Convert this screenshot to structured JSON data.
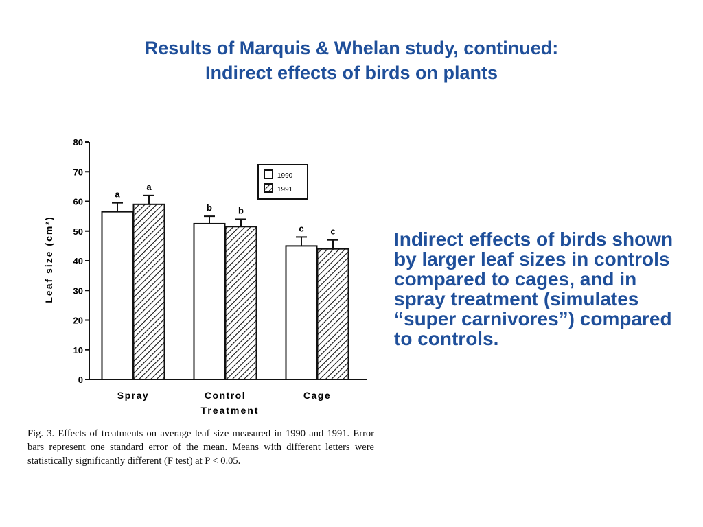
{
  "slide": {
    "title_line1": "Results of Marquis & Whelan study, continued:",
    "title_line2": "Indirect effects of birds on plants",
    "side_text": "Indirect effects of birds shown by larger leaf sizes in controls compared to cages, and in spray treatment (simulates “super carnivores”) compared to controls.",
    "caption": "Fig. 3.    Effects of treatments on average leaf size measured in 1990 and 1991. Error bars represent one standard error of the mean. Means with different letters were statistically significantly different (F test) at P < 0.05."
  },
  "chart_data": {
    "type": "bar",
    "categories": [
      "Spray",
      "Control",
      "Cage"
    ],
    "series": [
      {
        "name": "1990",
        "values": [
          56.5,
          52.5,
          45.0
        ],
        "errors": [
          3.0,
          2.5,
          3.0
        ],
        "letters": [
          "a",
          "b",
          "c"
        ],
        "pattern": "open"
      },
      {
        "name": "1991",
        "values": [
          59.0,
          51.5,
          44.0
        ],
        "errors": [
          3.0,
          2.5,
          3.0
        ],
        "letters": [
          "a",
          "b",
          "c"
        ],
        "pattern": "hatched"
      }
    ],
    "xlabel": "Treatment",
    "ylabel": "Leaf size (cm²)",
    "ylim": [
      0,
      80
    ],
    "yticks": [
      "0",
      "10",
      "20",
      "30",
      "40",
      "50",
      "60",
      "70",
      "80"
    ],
    "legend_position": "top-right",
    "grid": false,
    "colors": {
      "bar_edge": "#111111",
      "bar_fill": "#ffffff",
      "hatch": "#111111"
    }
  }
}
